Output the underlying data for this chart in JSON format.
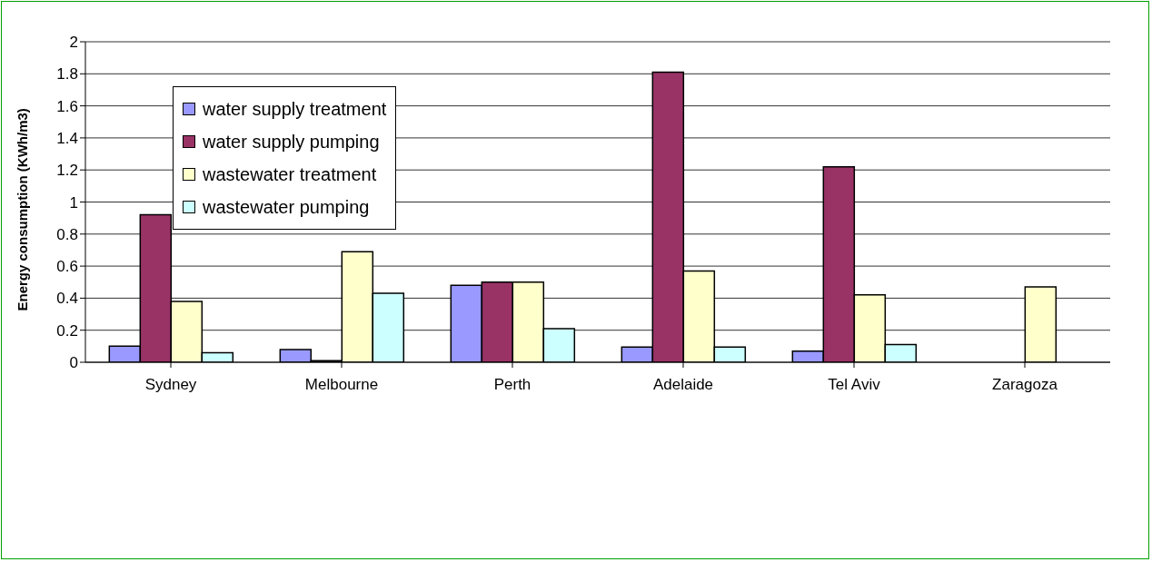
{
  "chart_data": {
    "type": "bar",
    "ylabel": "Energy consumption (KWh/m3)",
    "categories": [
      "Sydney",
      "Melbourne",
      "Perth",
      "Adelaide",
      "Tel Aviv",
      "Zaragoza"
    ],
    "series": [
      {
        "name": "water supply treatment",
        "color": "#9999ff",
        "values": [
          0.1,
          0.08,
          0.48,
          0.095,
          0.07,
          null
        ]
      },
      {
        "name": "water supply pumping",
        "color": "#993366",
        "values": [
          0.92,
          0.01,
          0.5,
          1.81,
          1.22,
          null
        ]
      },
      {
        "name": "wastewater treatment",
        "color": "#ffffcc",
        "values": [
          0.38,
          0.69,
          0.5,
          0.57,
          0.42,
          0.47
        ]
      },
      {
        "name": "wastewater pumping",
        "color": "#ccffff",
        "values": [
          0.06,
          0.43,
          0.21,
          0.095,
          0.11,
          null
        ]
      }
    ],
    "ylim": [
      0,
      2
    ],
    "yticks": [
      0,
      0.2,
      0.4,
      0.6,
      0.8,
      1,
      1.2,
      1.4,
      1.6,
      1.8,
      2
    ],
    "grid": "y",
    "legend": "top left"
  }
}
